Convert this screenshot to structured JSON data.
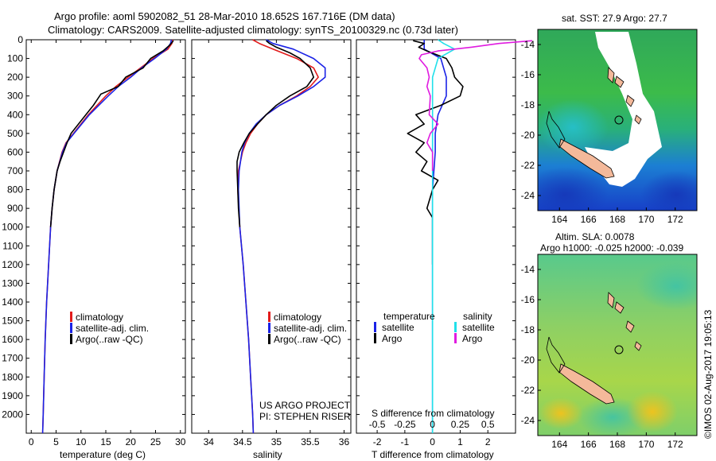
{
  "title": {
    "line1": "Argo profile: aoml 5902082_51 28-Mar-2010 18.652S 167.716E (DM data)",
    "line2": "Climatology: CARS2009. Satellite-adjusted climatology: synTS_20100329.nc (0.73d later)"
  },
  "depth_ticks": [
    "0",
    "100",
    "200",
    "300",
    "400",
    "500",
    "600",
    "700",
    "800",
    "900",
    "1000",
    "1100",
    "1200",
    "1300",
    "1400",
    "1500",
    "1600",
    "1700",
    "1800",
    "1900",
    "2000"
  ],
  "colors": {
    "climatology": "#e21b1b",
    "satellite": "#1a22e6",
    "argo": "#000000",
    "sal_satellite": "#21e0ea",
    "sal_argo": "#e01be0"
  },
  "chart_data": [
    {
      "type": "line",
      "name": "temperature-profile",
      "xlabel": "temperature (deg C)",
      "xlim": [
        -1,
        31
      ],
      "xticks": [
        "0",
        "5",
        "10",
        "15",
        "20",
        "25",
        "30"
      ],
      "ylim": [
        2100,
        0
      ],
      "legend": [
        "climatology",
        "satellite-adj. clim.",
        "Argo(..raw -QC)"
      ],
      "series": [
        {
          "name": "climatology",
          "depth": [
            0,
            20,
            50,
            100,
            150,
            200,
            250,
            300,
            400,
            500,
            550,
            600,
            700,
            800,
            900,
            1000,
            1200,
            1400,
            1600,
            1800,
            2000,
            2100
          ],
          "values": [
            28.5,
            28.3,
            27.5,
            24.5,
            22,
            19.5,
            17,
            15,
            11.5,
            8.5,
            7,
            6.2,
            5.2,
            4.6,
            4.2,
            3.9,
            3.5,
            3.1,
            2.8,
            2.6,
            2.4,
            2.3
          ]
        },
        {
          "name": "satellite-adj. clim.",
          "depth": [
            0,
            20,
            50,
            100,
            150,
            200,
            250,
            300,
            400,
            500,
            550,
            600,
            700,
            800,
            900,
            1000,
            1200,
            1400,
            1600,
            1800,
            2000,
            2100
          ],
          "values": [
            28.2,
            28.0,
            27.2,
            24.8,
            22.2,
            20.0,
            17.5,
            15.5,
            11.7,
            8.6,
            7.1,
            6.3,
            5.2,
            4.6,
            4.2,
            3.9,
            3.5,
            3.1,
            2.8,
            2.6,
            2.4,
            2.3
          ]
        },
        {
          "name": "Argo(..raw -QC)",
          "depth": [
            5,
            15,
            30,
            60,
            100,
            150,
            200,
            250,
            290,
            350,
            400,
            450,
            500,
            550,
            600,
            650,
            700,
            800,
            900,
            1000
          ],
          "values": [
            28.6,
            28.3,
            27.8,
            26.5,
            24,
            22.5,
            19,
            17.5,
            14,
            12.5,
            11,
            9.5,
            8,
            7.2,
            6.5,
            5.8,
            5.2,
            4.6,
            4.2,
            3.9
          ]
        }
      ]
    },
    {
      "type": "line",
      "name": "salinity-profile",
      "xlabel": "salinity",
      "xlim": [
        33.75,
        36.1
      ],
      "xticks": [
        "34",
        "34.5",
        "35",
        "35.5",
        "36"
      ],
      "ylim": [
        2100,
        0
      ],
      "legend": [
        "climatology",
        "satellite-adj. clim.",
        "Argo(..raw -QC)"
      ],
      "series": [
        {
          "name": "climatology",
          "depth": [
            0,
            20,
            50,
            100,
            150,
            200,
            250,
            300,
            350,
            400,
            450,
            500,
            550,
            600,
            700,
            800,
            1000,
            1200,
            1400,
            1600,
            1800,
            2000,
            2100
          ],
          "values": [
            34.65,
            34.75,
            34.95,
            35.3,
            35.55,
            35.62,
            35.5,
            35.3,
            35.05,
            34.85,
            34.72,
            34.62,
            34.55,
            34.5,
            34.44,
            34.43,
            34.46,
            34.51,
            34.55,
            34.59,
            34.62,
            34.65,
            34.66
          ]
        },
        {
          "name": "satellite-adj. clim.",
          "depth": [
            0,
            20,
            50,
            100,
            150,
            200,
            250,
            300,
            350,
            400,
            450,
            500,
            550,
            600,
            700,
            800,
            1000,
            1200,
            1400,
            1600,
            1800,
            2000,
            2100
          ],
          "values": [
            34.85,
            34.95,
            35.25,
            35.55,
            35.72,
            35.72,
            35.55,
            35.32,
            35.05,
            34.85,
            34.7,
            34.6,
            34.53,
            34.49,
            34.45,
            34.44,
            34.46,
            34.51,
            34.55,
            34.59,
            34.62,
            34.65,
            34.66
          ]
        },
        {
          "name": "Argo(..raw -QC)",
          "depth": [
            5,
            20,
            40,
            70,
            100,
            150,
            200,
            250,
            300,
            350,
            400,
            450,
            500,
            550,
            600,
            650,
            700,
            800,
            900,
            1000
          ],
          "values": [
            34.85,
            34.9,
            35.0,
            35.2,
            35.35,
            35.5,
            35.55,
            35.45,
            35.2,
            35.0,
            34.85,
            34.72,
            34.6,
            34.52,
            34.45,
            34.42,
            34.42,
            34.43,
            34.44,
            34.46
          ]
        }
      ]
    },
    {
      "type": "line",
      "name": "difference-profile",
      "xlabel": "T difference from climatology",
      "xlabel_top": "S difference from climatology",
      "xlim": [
        -2.75,
        3.0
      ],
      "xticks": [
        "-2",
        "-1",
        "0",
        "1",
        "2"
      ],
      "xticks_top": [
        "-0.5",
        "-0.25",
        "0",
        "0.25",
        "0.5"
      ],
      "ylim": [
        2100,
        0
      ],
      "legend_temperature": {
        "heading": "temperature",
        "items": [
          "satellite",
          "Argo"
        ]
      },
      "legend_salinity": {
        "heading": "salinity",
        "items": [
          "satellite",
          "Argo"
        ]
      },
      "series": [
        {
          "name": "temperature satellite",
          "depth": [
            0,
            50,
            100,
            200,
            300,
            400,
            500,
            600,
            800,
            1000,
            1500,
            2100
          ],
          "values": [
            -0.3,
            -0.3,
            0.3,
            0.5,
            0.5,
            0.2,
            0.1,
            0.1,
            0,
            0,
            0,
            0
          ]
        },
        {
          "name": "temperature Argo",
          "depth": [
            5,
            20,
            40,
            60,
            100,
            150,
            200,
            250,
            300,
            350,
            400,
            450,
            500,
            550,
            600,
            650,
            700,
            750,
            800,
            850,
            900,
            950,
            1000,
            1100,
            1200
          ],
          "values": [
            -0.7,
            -0.3,
            -0.5,
            -0.2,
            0.5,
            0.7,
            0.8,
            1.1,
            1.0,
            0.3,
            -0.6,
            -0.3,
            -0.9,
            -0.3,
            -0.6,
            -0.2,
            -0.4,
            0.2,
            0,
            -0.1,
            -0.2,
            0,
            0,
            0,
            0
          ]
        },
        {
          "name": "salinity satellite",
          "depth": [
            0,
            20,
            50,
            100,
            200,
            300,
            400,
            500,
            700,
            1000,
            1500,
            2100
          ],
          "values": [
            0.05,
            0.1,
            0.2,
            0.05,
            0,
            0,
            0,
            0,
            0,
            0,
            0,
            0
          ]
        },
        {
          "name": "salinity Argo",
          "depth": [
            5,
            20,
            40,
            60,
            80,
            100,
            150,
            200,
            250,
            300,
            400,
            450,
            500,
            550,
            600,
            700
          ],
          "values": [
            0.9,
            0.6,
            0.35,
            0.05,
            -0.1,
            -0.12,
            -0.05,
            -0.03,
            -0.05,
            -0.02,
            -0.03,
            0.05,
            -0.02,
            -0.05,
            0,
            0
          ]
        }
      ]
    },
    {
      "type": "heatmap",
      "name": "sst-map",
      "title": "sat. SST: 27.9 Argo: 27.7",
      "xticks": [
        "164",
        "166",
        "168",
        "170",
        "172"
      ],
      "yticks": [
        "-14",
        "-16",
        "-18",
        "-20",
        "-22",
        "-24"
      ],
      "xlim": [
        162.5,
        173.5
      ],
      "ylim": [
        -25,
        -13
      ],
      "float_position": {
        "lon": 167.716,
        "lat": -18.652
      }
    },
    {
      "type": "heatmap",
      "name": "sla-map",
      "title_line1": "Altim. SLA: 0.0078",
      "title_line2": "Argo h1000: -0.025 h2000: -0.039",
      "xticks": [
        "164",
        "166",
        "168",
        "170",
        "172"
      ],
      "yticks": [
        "-14",
        "-16",
        "-18",
        "-20",
        "-22",
        "-24"
      ],
      "xlim": [
        162.5,
        173.5
      ],
      "ylim": [
        -25,
        -13
      ],
      "float_position": {
        "lon": 167.716,
        "lat": -18.652
      }
    }
  ],
  "annotations": {
    "project": "US ARGO PROJECT",
    "pi": "PI: STEPHEN RISER",
    "credit": "©IMOS 02-Aug-2017 19:05:13"
  }
}
